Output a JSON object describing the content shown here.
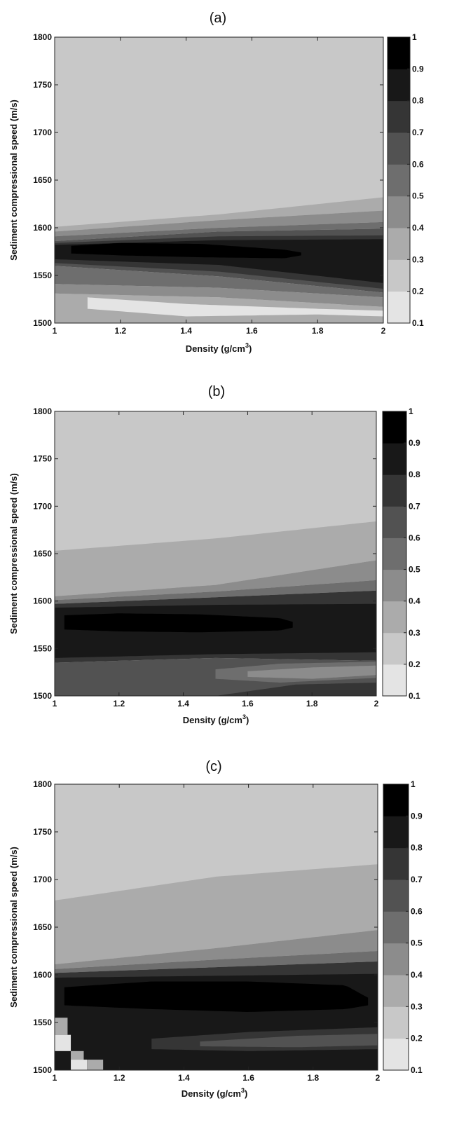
{
  "chart_data": [
    {
      "type": "heatmap",
      "title": "(a)",
      "xlabel": "Density (g/cm",
      "xlabel_sup": "3",
      "xlabel_end": ")",
      "ylabel": "Sediment compressional speed (m/s)",
      "xlim": [
        1,
        2
      ],
      "ylim": [
        1500,
        1800
      ],
      "x_ticks": [
        1,
        1.2,
        1.4,
        1.6,
        1.8,
        2
      ],
      "x_tick_labels": [
        "1",
        "1.2",
        "1.4",
        "1.6",
        "1.8",
        "2"
      ],
      "y_ticks": [
        1500,
        1550,
        1600,
        1650,
        1700,
        1750,
        1800
      ],
      "y_tick_labels": [
        "1500",
        "1550",
        "1600",
        "1650",
        "1700",
        "1750",
        "1800"
      ],
      "colorbar": {
        "range": [
          0.1,
          1
        ],
        "ticks": [
          0.1,
          0.2,
          0.3,
          0.4,
          0.5,
          0.6,
          0.7,
          0.8,
          0.9,
          1
        ],
        "tick_labels": [
          "0.1",
          "0.2",
          "0.3",
          "0.4",
          "0.5",
          "0.6",
          "0.7",
          "0.8",
          "0.9",
          "1"
        ],
        "colors": [
          "#e4e4e4",
          "#c8c8c8",
          "#ababab",
          "#8c8c8c",
          "#6e6e6e",
          "#525252",
          "#353535",
          "#181818",
          "#000000"
        ]
      },
      "background_level": 0.25,
      "regions": [
        {
          "level": 0.35,
          "x": [
            1,
            1.5,
            2
          ],
          "top": [
            1601,
            1614,
            1632
          ],
          "bottom": [
            1596,
            1608,
            1618
          ]
        },
        {
          "level": 0.45,
          "x": [
            1,
            1.5,
            2
          ],
          "top": [
            1596,
            1608,
            1618
          ],
          "bottom": [
            1591,
            1600,
            1606
          ]
        },
        {
          "level": 0.55,
          "x": [
            1,
            1.5,
            2
          ],
          "top": [
            1591,
            1600,
            1606
          ],
          "bottom": [
            1586,
            1596,
            1599
          ]
        },
        {
          "level": 0.65,
          "x": [
            1,
            1.5,
            2
          ],
          "top": [
            1586,
            1596,
            1599
          ],
          "bottom": [
            1560,
            1549,
            1532
          ]
        },
        {
          "level": 0.75,
          "x": [
            1,
            1.5,
            2
          ],
          "top": [
            1584,
            1591,
            1592
          ],
          "bottom": [
            1563,
            1554,
            1536
          ]
        },
        {
          "level": 0.85,
          "x": [
            1,
            1.5,
            2
          ],
          "top": [
            1582,
            1587,
            1588
          ],
          "bottom": [
            1567,
            1561,
            1542
          ]
        },
        {
          "level": 0.95,
          "x": [
            1.05,
            1.2,
            1.45,
            1.7,
            1.75
          ],
          "top": [
            1581,
            1584,
            1583,
            1577,
            1574
          ],
          "bottom": [
            1573,
            1571,
            1569,
            1568,
            1571
          ]
        },
        {
          "level": 0.55,
          "x": [
            1,
            1.5,
            2
          ],
          "top": [
            1560,
            1549,
            1532
          ],
          "bottom": [
            1541,
            1537,
            1527
          ]
        },
        {
          "level": 0.45,
          "x": [
            1,
            1.5,
            2
          ],
          "top": [
            1541,
            1537,
            1527
          ],
          "bottom": [
            1531,
            1527,
            1517
          ]
        },
        {
          "level": 0.35,
          "x": [
            1,
            1.5,
            2
          ],
          "top": [
            1531,
            1527,
            1517
          ],
          "bottom": [
            1500,
            1500,
            1500
          ]
        },
        {
          "level": 0.15,
          "x": [
            1.1,
            1.4,
            1.8,
            2
          ],
          "top": [
            1527,
            1520,
            1515,
            1513
          ],
          "bottom": [
            1515,
            1507,
            1509,
            1507
          ]
        }
      ]
    },
    {
      "type": "heatmap",
      "title": "(b)",
      "xlabel": "Density (g/cm",
      "xlabel_sup": "3",
      "xlabel_end": ")",
      "ylabel": "Sediment compressional speed (m/s)",
      "xlim": [
        1,
        2
      ],
      "ylim": [
        1500,
        1800
      ],
      "x_ticks": [
        1,
        1.2,
        1.4,
        1.6,
        1.8,
        2
      ],
      "x_tick_labels": [
        "1",
        "1.2",
        "1.4",
        "1.6",
        "1.8",
        "2"
      ],
      "y_ticks": [
        1500,
        1550,
        1600,
        1650,
        1700,
        1750,
        1800
      ],
      "y_tick_labels": [
        "1500",
        "1550",
        "1600",
        "1650",
        "1700",
        "1750",
        "1800"
      ],
      "colorbar": {
        "range": [
          0.1,
          1
        ],
        "ticks": [
          0.1,
          0.2,
          0.3,
          0.4,
          0.5,
          0.6,
          0.7,
          0.8,
          0.9,
          1
        ],
        "tick_labels": [
          "0.1",
          "0.2",
          "0.3",
          "0.4",
          "0.5",
          "0.6",
          "0.7",
          "0.8",
          "0.9",
          "1"
        ],
        "colors": [
          "#e4e4e4",
          "#c8c8c8",
          "#ababab",
          "#8c8c8c",
          "#6e6e6e",
          "#525252",
          "#353535",
          "#181818",
          "#000000"
        ]
      },
      "background_level": 0.25,
      "regions": [
        {
          "level": 0.35,
          "x": [
            1,
            1.5,
            2
          ],
          "top": [
            1653,
            1666,
            1684
          ],
          "bottom": [
            1605,
            1617,
            1643
          ]
        },
        {
          "level": 0.45,
          "x": [
            1,
            1.5,
            2
          ],
          "top": [
            1605,
            1617,
            1643
          ],
          "bottom": [
            1601,
            1610,
            1622
          ]
        },
        {
          "level": 0.55,
          "x": [
            1,
            1.5,
            2
          ],
          "top": [
            1601,
            1610,
            1622
          ],
          "bottom": [
            1597,
            1604,
            1611
          ]
        },
        {
          "level": 0.75,
          "x": [
            1,
            1.5,
            2
          ],
          "top": [
            1597,
            1604,
            1611
          ],
          "bottom": [
            1535,
            1540,
            1537
          ]
        },
        {
          "level": 0.85,
          "x": [
            1,
            1.5,
            2
          ],
          "top": [
            1593,
            1596,
            1597
          ],
          "bottom": [
            1540,
            1544,
            1546
          ]
        },
        {
          "level": 0.95,
          "x": [
            1.03,
            1.2,
            1.45,
            1.7,
            1.74
          ],
          "top": [
            1585,
            1587,
            1586,
            1582,
            1578
          ],
          "bottom": [
            1570,
            1568,
            1567,
            1569,
            1572
          ]
        },
        {
          "level": 0.65,
          "x": [
            1,
            1.5,
            2
          ],
          "top": [
            1535,
            1540,
            1537
          ],
          "bottom": [
            1500,
            1500,
            1500
          ]
        },
        {
          "level": 0.55,
          "x": [
            1.5,
            1.7,
            2
          ],
          "top": [
            1528,
            1534,
            1536
          ],
          "bottom": [
            1518,
            1514,
            1519
          ]
        },
        {
          "level": 0.45,
          "x": [
            1.6,
            1.8,
            2
          ],
          "top": [
            1526,
            1530,
            1532
          ],
          "bottom": [
            1520,
            1518,
            1522
          ]
        },
        {
          "level": 0.75,
          "x": [
            1.5,
            1.75,
            2
          ],
          "top": [
            1500,
            1512,
            1514
          ],
          "bottom": [
            1500,
            1500,
            1500
          ]
        }
      ]
    },
    {
      "type": "heatmap",
      "title": "(c)",
      "xlabel": "Density (g/cm",
      "xlabel_sup": "3",
      "xlabel_end": ")",
      "ylabel": "Sediment compressional speed (m/s)",
      "xlim": [
        1,
        2
      ],
      "ylim": [
        1500,
        1800
      ],
      "x_ticks": [
        1,
        1.2,
        1.4,
        1.6,
        1.8,
        2
      ],
      "x_tick_labels": [
        "1",
        "1.2",
        "1.4",
        "1.6",
        "1.8",
        "2"
      ],
      "y_ticks": [
        1500,
        1550,
        1600,
        1650,
        1700,
        1750,
        1800
      ],
      "y_tick_labels": [
        "1500",
        "1550",
        "1600",
        "1650",
        "1700",
        "1750",
        "1800"
      ],
      "colorbar": {
        "range": [
          0.1,
          1
        ],
        "ticks": [
          0.1,
          0.2,
          0.3,
          0.4,
          0.5,
          0.6,
          0.7,
          0.8,
          0.9,
          1
        ],
        "tick_labels": [
          "0.1",
          "0.2",
          "0.3",
          "0.4",
          "0.5",
          "0.6",
          "0.7",
          "0.8",
          "0.9",
          "1"
        ],
        "colors": [
          "#e4e4e4",
          "#c8c8c8",
          "#ababab",
          "#8c8c8c",
          "#6e6e6e",
          "#525252",
          "#353535",
          "#181818",
          "#000000"
        ]
      },
      "background_level": 0.25,
      "regions": [
        {
          "level": 0.35,
          "x": [
            1,
            1.5,
            2
          ],
          "top": [
            1678,
            1703,
            1716
          ],
          "bottom": [
            1611,
            1628,
            1647
          ]
        },
        {
          "level": 0.45,
          "x": [
            1,
            1.5,
            2
          ],
          "top": [
            1611,
            1628,
            1647
          ],
          "bottom": [
            1606,
            1616,
            1625
          ]
        },
        {
          "level": 0.55,
          "x": [
            1,
            1.5,
            2
          ],
          "top": [
            1606,
            1616,
            1625
          ],
          "bottom": [
            1602,
            1608,
            1614
          ]
        },
        {
          "level": 0.75,
          "x": [
            1,
            1.5,
            2
          ],
          "top": [
            1602,
            1608,
            1614
          ],
          "bottom": [
            1500,
            1500,
            1500
          ]
        },
        {
          "level": 0.85,
          "x": [
            1,
            1.5,
            2
          ],
          "top": [
            1597,
            1599,
            1601
          ],
          "bottom": [
            1500,
            1500,
            1500
          ]
        },
        {
          "level": 0.95,
          "x": [
            1.03,
            1.3,
            1.6,
            1.9,
            1.97
          ],
          "top": [
            1587,
            1593,
            1593,
            1589,
            1576
          ],
          "bottom": [
            1568,
            1564,
            1561,
            1564,
            1568
          ]
        },
        {
          "level": 0.75,
          "x": [
            1.3,
            1.6,
            2
          ],
          "top": [
            1533,
            1540,
            1545
          ],
          "bottom": [
            1522,
            1520,
            1522
          ]
        },
        {
          "level": 0.65,
          "x": [
            1.45,
            1.75,
            2
          ],
          "top": [
            1530,
            1536,
            1538
          ],
          "bottom": [
            1525,
            1524,
            1526
          ]
        }
      ],
      "blocks": [
        {
          "level": 0.35,
          "x": [
            1,
            1.04
          ],
          "y": [
            1537,
            1555
          ]
        },
        {
          "level": 0.15,
          "x": [
            1,
            1.05
          ],
          "y": [
            1520,
            1537
          ]
        },
        {
          "level": 0.15,
          "x": [
            1.05,
            1.1
          ],
          "y": [
            1500,
            1511
          ]
        },
        {
          "level": 0.35,
          "x": [
            1.1,
            1.15
          ],
          "y": [
            1500,
            1511
          ]
        },
        {
          "level": 0.35,
          "x": [
            1.05,
            1.09
          ],
          "y": [
            1511,
            1520
          ]
        }
      ]
    }
  ]
}
